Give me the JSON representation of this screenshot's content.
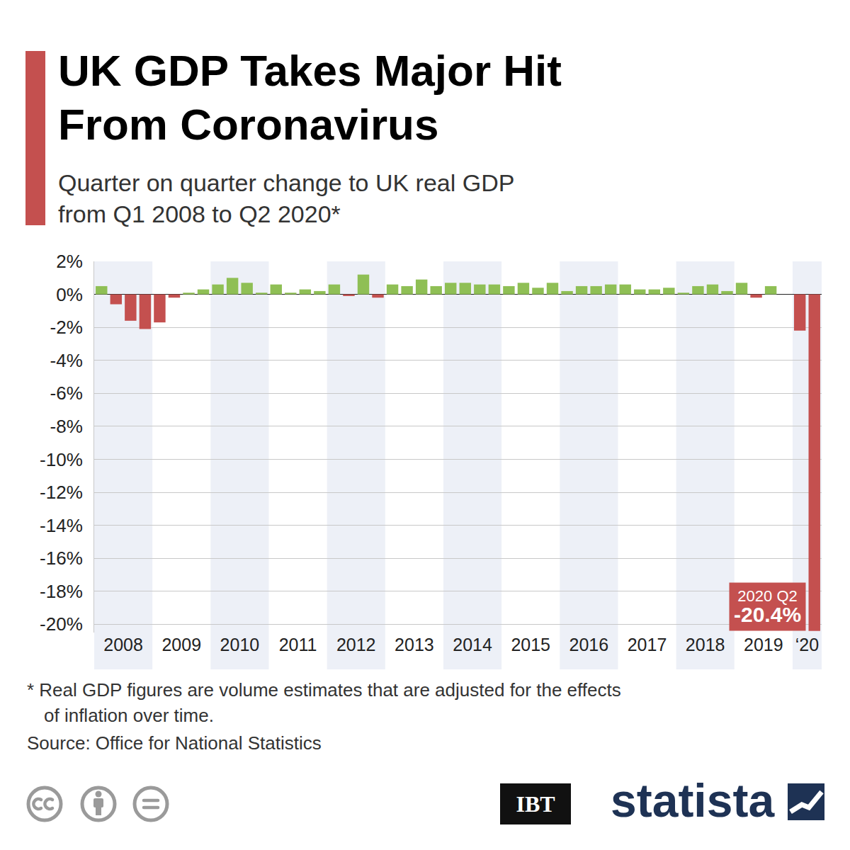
{
  "chart_data": {
    "type": "bar",
    "title": [
      "UK GDP Takes Major Hit",
      "From Coronavirus"
    ],
    "subtitle": [
      "Quarter on quarter change to UK real GDP",
      "from Q1 2008 to Q2 2020*"
    ],
    "footnote": [
      "* Real GDP figures are volume estimates that are adjusted for the effects",
      "of inflation over time."
    ],
    "source": "Source: Office for National Statistics",
    "logos": [
      "IBT",
      "statista"
    ],
    "categories": [
      null,
      "2008",
      null,
      null,
      null,
      "2009",
      null,
      null,
      null,
      "2010",
      null,
      null,
      null,
      "2011",
      null,
      null,
      null,
      "2012",
      null,
      null,
      null,
      "2013",
      null,
      null,
      null,
      "2014",
      null,
      null,
      null,
      "2015",
      null,
      null,
      null,
      "2016",
      null,
      null,
      null,
      "2017",
      null,
      null,
      null,
      "2018",
      null,
      null,
      null,
      "2019",
      null,
      null,
      "‘20",
      null
    ],
    "values": [
      0.5,
      -0.6,
      -1.6,
      -2.1,
      -1.7,
      -0.2,
      0.1,
      0.3,
      0.6,
      1.0,
      0.7,
      0.1,
      0.6,
      0.1,
      0.3,
      0.2,
      0.6,
      -0.1,
      1.2,
      -0.2,
      0.6,
      0.5,
      0.9,
      0.5,
      0.7,
      0.7,
      0.6,
      0.6,
      0.5,
      0.7,
      0.4,
      0.7,
      0.2,
      0.5,
      0.5,
      0.6,
      0.6,
      0.3,
      0.3,
      0.4,
      0.1,
      0.5,
      0.6,
      0.2,
      0.7,
      -0.2,
      0.5,
      0.0,
      -2.2,
      -20.4
    ],
    "colors": [
      "#8fbf55",
      "#c4504f",
      "#c4504f",
      "#c4504f",
      "#c4504f",
      "#c4504f",
      "#8fbf55",
      "#8fbf55",
      "#8fbf55",
      "#8fbf55",
      "#8fbf55",
      "#8fbf55",
      "#8fbf55",
      "#8fbf55",
      "#8fbf55",
      "#8fbf55",
      "#8fbf55",
      "#c4504f",
      "#8fbf55",
      "#c4504f",
      "#8fbf55",
      "#8fbf55",
      "#8fbf55",
      "#8fbf55",
      "#8fbf55",
      "#8fbf55",
      "#8fbf55",
      "#8fbf55",
      "#8fbf55",
      "#8fbf55",
      "#8fbf55",
      "#8fbf55",
      "#8fbf55",
      "#8fbf55",
      "#8fbf55",
      "#8fbf55",
      "#8fbf55",
      "#8fbf55",
      "#8fbf55",
      "#8fbf55",
      "#8fbf55",
      "#8fbf55",
      "#8fbf55",
      "#8fbf55",
      "#8fbf55",
      "#c4504f",
      "#8fbf55",
      "#8fbf55",
      "#c4504f",
      "#c4504f"
    ],
    "ylim": [
      -20.5,
      2
    ],
    "yticks": [
      {
        "value": 2,
        "label": "2%"
      },
      {
        "value": 0,
        "label": "0%"
      },
      {
        "value": -2,
        "label": "-2%"
      },
      {
        "value": -4,
        "label": "-4%"
      },
      {
        "value": -6,
        "label": "-6%"
      },
      {
        "value": -8,
        "label": "-8%"
      },
      {
        "value": -10,
        "label": "-10%"
      },
      {
        "value": -12,
        "label": "-12%"
      },
      {
        "value": -14,
        "label": "-14%"
      },
      {
        "value": -16,
        "label": "-16%"
      },
      {
        "value": -18,
        "label": "-18%"
      },
      {
        "value": -20,
        "label": "-20%"
      }
    ],
    "grid": true,
    "annotations": [
      {
        "x": 49,
        "y": -20.4,
        "text": "2020 Q2",
        "value_label": "-20.4%"
      }
    ]
  }
}
